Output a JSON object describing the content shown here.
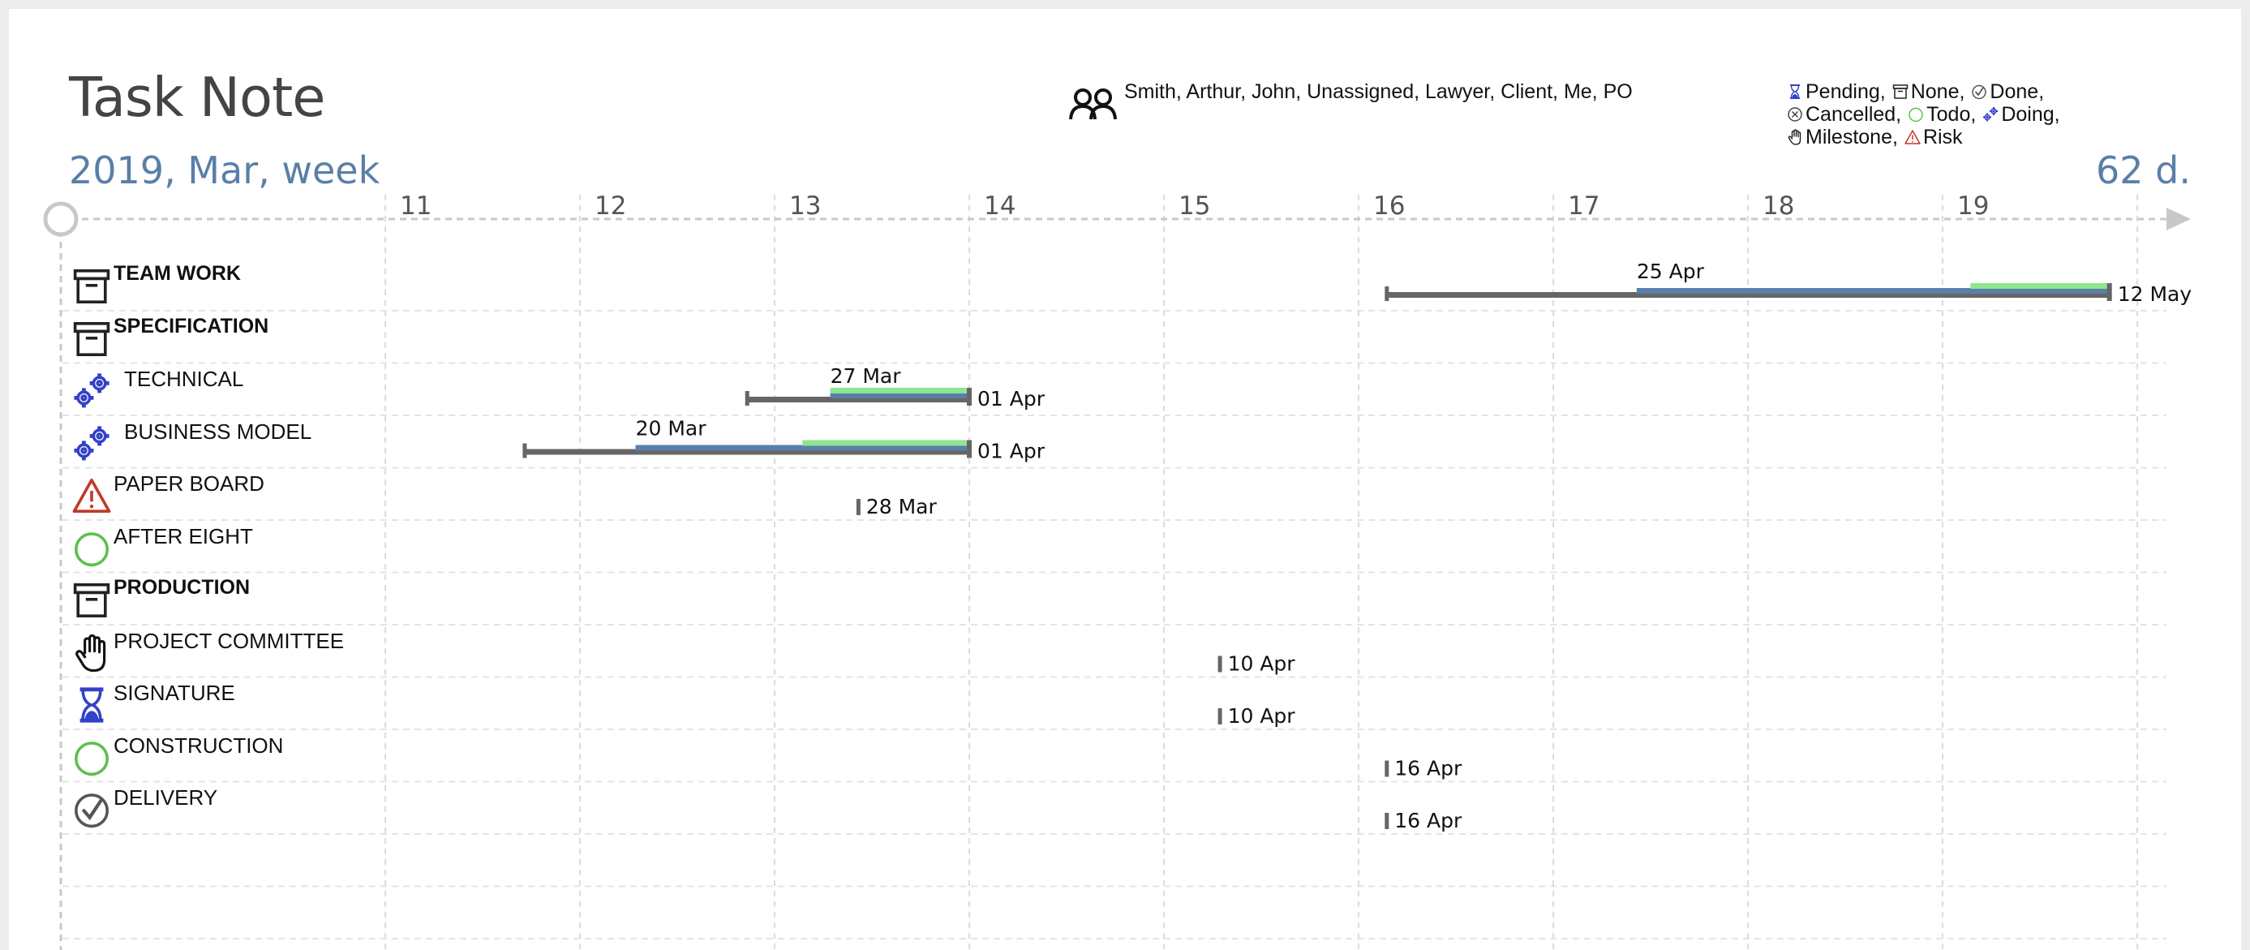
{
  "header": {
    "title": "Task Note",
    "period": "2019, Mar, week",
    "duration": "62 d.",
    "people": "Smith, Arthur, John, Unassigned, Lawyer, Client, Me, PO"
  },
  "legend": [
    {
      "icon": "hourglass-icon",
      "label": "Pending,"
    },
    {
      "icon": "archive-box-icon",
      "label": "None,"
    },
    {
      "icon": "check-circle-icon",
      "label": "Done,"
    },
    {
      "icon": "x-circle-icon",
      "label": "Cancelled,"
    },
    {
      "icon": "open-circle-icon",
      "label": "Todo,"
    },
    {
      "icon": "gears-icon",
      "label": "Doing,"
    },
    {
      "icon": "hand-icon",
      "label": "Milestone,"
    },
    {
      "icon": "warning-triangle-icon",
      "label": "Risk"
    }
  ],
  "timeline": {
    "weeks": [
      "11",
      "12",
      "13",
      "14",
      "15",
      "16",
      "17",
      "18",
      "19"
    ]
  },
  "tasks": [
    {
      "label": "TEAM WORK",
      "icon": "archive-box-icon",
      "group": true,
      "start_label": "25 Apr",
      "end_label": "12 May"
    },
    {
      "label": "SPECIFICATION",
      "icon": "archive-box-icon",
      "group": true
    },
    {
      "label": "TECHNICAL",
      "icon": "gears-icon",
      "group": false,
      "start_label": "27 Mar",
      "end_label": "01 Apr"
    },
    {
      "label": "BUSINESS MODEL",
      "icon": "gears-icon",
      "group": false,
      "start_label": "20 Mar",
      "end_label": "01 Apr"
    },
    {
      "label": "PAPER BOARD",
      "icon": "warning-triangle-icon",
      "group": false,
      "end_label": "28 Mar"
    },
    {
      "label": "AFTER EIGHT",
      "icon": "open-circle-icon",
      "group": false
    },
    {
      "label": "PRODUCTION",
      "icon": "archive-box-icon",
      "group": true
    },
    {
      "label": "PROJECT COMMITTEE",
      "icon": "hand-icon",
      "group": false,
      "end_label": "10 Apr"
    },
    {
      "label": "SIGNATURE",
      "icon": "hourglass-icon",
      "group": false,
      "end_label": "10 Apr"
    },
    {
      "label": "CONSTRUCTION",
      "icon": "open-circle-icon",
      "group": false,
      "end_label": "16 Apr"
    },
    {
      "label": "DELIVERY",
      "icon": "check-circle-icon",
      "group": false,
      "end_label": "16 Apr"
    }
  ],
  "colors": {
    "bar_gray": "#666666",
    "bar_blue": "#5a7fa8",
    "bar_green": "#8ee68e",
    "risk_red": "#c0392b",
    "todo_green": "#5cc04a",
    "doing_blue": "#3341c8"
  }
}
